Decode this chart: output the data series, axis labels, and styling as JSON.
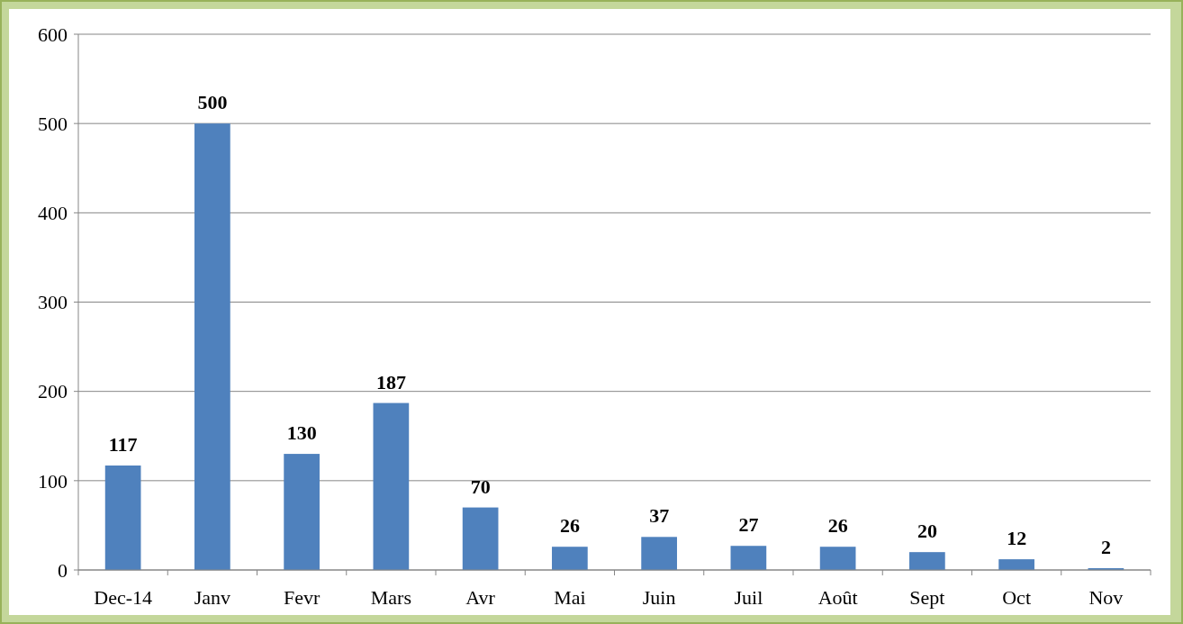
{
  "chart_data": {
    "type": "bar",
    "categories": [
      "Dec-14",
      "Janv",
      "Fevr",
      "Mars",
      "Avr",
      "Mai",
      "Juin",
      "Juil",
      "Août",
      "Sept",
      "Oct",
      "Nov"
    ],
    "values": [
      117,
      500,
      130,
      187,
      70,
      26,
      37,
      27,
      26,
      20,
      12,
      2
    ],
    "color": "#4f81bd",
    "ylim": [
      0,
      600
    ],
    "yticks": [
      0,
      100,
      200,
      300,
      400,
      500,
      600
    ],
    "grid": "y",
    "data_labels": true
  }
}
